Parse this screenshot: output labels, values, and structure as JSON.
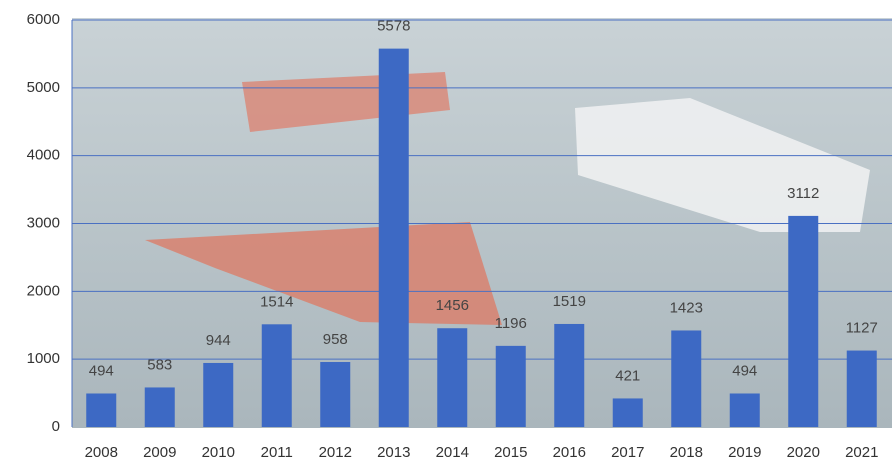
{
  "chart_data": {
    "type": "bar",
    "categories": [
      "2008",
      "2009",
      "2010",
      "2011",
      "2012",
      "2013",
      "2014",
      "2015",
      "2016",
      "2017",
      "2018",
      "2019",
      "2020",
      "2021"
    ],
    "values": [
      494,
      583,
      944,
      1514,
      958,
      5578,
      1456,
      1196,
      1519,
      421,
      1423,
      494,
      3112,
      1127
    ],
    "color": "#3d69c4",
    "ylim": [
      0,
      6000
    ],
    "yticks": [
      0,
      1000,
      2000,
      3000,
      4000,
      5000,
      6000
    ],
    "grid": true
  }
}
